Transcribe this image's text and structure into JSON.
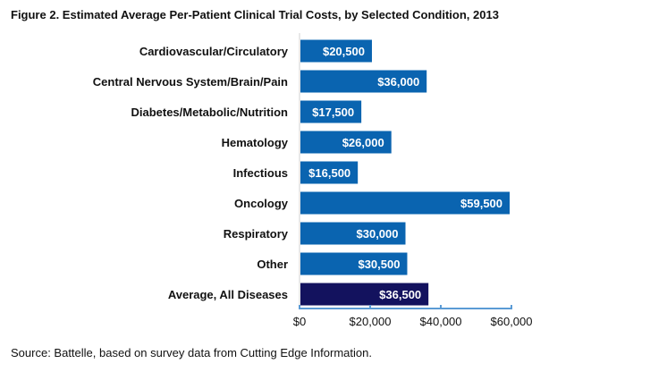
{
  "chart_data": {
    "type": "bar",
    "orientation": "horizontal",
    "title": "Figure 2. Estimated Average Per-Patient Clinical Trial Costs, by Selected Condition, 2013",
    "categories": [
      "Cardiovascular/Circulatory",
      "Central Nervous System/Brain/Pain",
      "Diabetes/Metabolic/Nutrition",
      "Hematology",
      "Infectious",
      "Oncology",
      "Respiratory",
      "Other",
      "Average, All Diseases"
    ],
    "values": [
      20500,
      36000,
      17500,
      26000,
      16500,
      59500,
      30000,
      30500,
      36500
    ],
    "data_labels": [
      "$20,500",
      "$36,000",
      "$17,500",
      "$26,000",
      "$16,500",
      "$59,500",
      "$30,000",
      "$30,500",
      "$36,500"
    ],
    "xlim": [
      0,
      60000
    ],
    "xticks": [
      0,
      20000,
      40000,
      60000
    ],
    "xtick_labels": [
      "$0",
      "$20,000",
      "$40,000",
      "$60,000"
    ],
    "grid": false,
    "colors": {
      "bar": "#0a64b0",
      "highlight": "#13125e",
      "axis": "#5b9bd5"
    },
    "highlight_category": "Average, All Diseases"
  },
  "source": "Source:  Battelle, based on survey data from Cutting Edge Information."
}
